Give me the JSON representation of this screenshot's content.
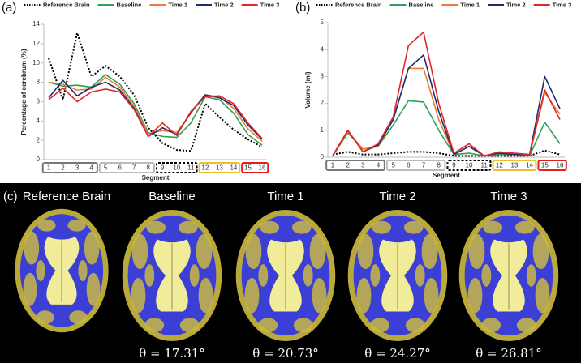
{
  "chart_data": [
    {
      "type": "line",
      "panel_label": "(a)",
      "y_label": "Percentage of cerebrum (%)",
      "x_label": "Segment",
      "categories": [
        "1",
        "2",
        "3",
        "4",
        "5",
        "6",
        "7",
        "8",
        "9",
        "10",
        "11",
        "12",
        "13",
        "14",
        "15",
        "16"
      ],
      "ylim": [
        0,
        14
      ],
      "yticks": [
        0,
        2,
        4,
        6,
        8,
        10,
        12,
        14
      ],
      "series": [
        {
          "name": "Reference Brain",
          "color": "#000000",
          "style": "dotted",
          "values": [
            10.5,
            6.2,
            13.1,
            8.6,
            9.7,
            8.6,
            6.7,
            3.3,
            1.7,
            1.0,
            0.9,
            5.8,
            4.4,
            3.1,
            2.1,
            1.3
          ]
        },
        {
          "name": "Baseline",
          "color": "#2ca05a",
          "style": "solid",
          "values": [
            8.0,
            7.6,
            7.7,
            7.5,
            8.8,
            7.8,
            5.8,
            2.8,
            2.4,
            2.3,
            3.8,
            6.5,
            6.2,
            4.8,
            2.6,
            1.5
          ]
        },
        {
          "name": "Time 1",
          "color": "#ed7d31",
          "style": "solid",
          "values": [
            8.0,
            7.8,
            7.2,
            7.3,
            8.5,
            7.5,
            5.5,
            2.7,
            3.0,
            2.8,
            4.8,
            6.7,
            6.5,
            5.3,
            3.2,
            1.9
          ]
        },
        {
          "name": "Time 2",
          "color": "#1f2d6e",
          "style": "solid",
          "values": [
            6.4,
            8.2,
            6.6,
            7.5,
            8.0,
            7.2,
            5.3,
            2.4,
            3.3,
            2.6,
            4.9,
            6.7,
            6.4,
            5.6,
            3.6,
            2.1
          ]
        },
        {
          "name": "Time 3",
          "color": "#e0262b",
          "style": "solid",
          "values": [
            6.2,
            7.4,
            6.0,
            7.0,
            7.3,
            7.0,
            5.2,
            2.4,
            3.8,
            2.5,
            5.0,
            6.5,
            6.6,
            5.8,
            3.8,
            2.2
          ]
        }
      ]
    },
    {
      "type": "line",
      "panel_label": "(b)",
      "y_label": "Volume (ml)",
      "x_label": "Segment",
      "categories": [
        "1",
        "2",
        "3",
        "4",
        "5",
        "6",
        "7",
        "8",
        "9",
        "10",
        "11",
        "12",
        "13",
        "14",
        "15",
        "16"
      ],
      "ylim": [
        0,
        5
      ],
      "yticks": [
        0,
        1,
        2,
        3,
        4,
        5
      ],
      "series": [
        {
          "name": "Reference Brain",
          "color": "#000000",
          "style": "dotted",
          "values": [
            0.1,
            0.2,
            0.1,
            0.1,
            0.15,
            0.2,
            0.2,
            0.15,
            0.05,
            0.05,
            0.05,
            0.05,
            0.05,
            0.05,
            0.25,
            0.1
          ]
        },
        {
          "name": "Baseline",
          "color": "#2ca05a",
          "style": "solid",
          "values": [
            0.05,
            0.9,
            0.3,
            0.4,
            1.2,
            2.1,
            2.05,
            1.0,
            0.1,
            0.15,
            0.05,
            0.1,
            0.1,
            0.05,
            1.3,
            0.5
          ]
        },
        {
          "name": "Time 1",
          "color": "#ed7d31",
          "style": "solid",
          "values": [
            0.05,
            0.95,
            0.3,
            0.4,
            1.4,
            3.3,
            3.3,
            1.4,
            0.1,
            0.4,
            0.05,
            0.15,
            0.1,
            0.1,
            2.4,
            1.6
          ]
        },
        {
          "name": "Time 2",
          "color": "#1f2d6e",
          "style": "solid",
          "values": [
            0.05,
            1.0,
            0.2,
            0.45,
            1.4,
            3.3,
            3.8,
            1.7,
            0.1,
            0.4,
            0.05,
            0.15,
            0.1,
            0.1,
            3.0,
            1.8
          ]
        },
        {
          "name": "Time 3",
          "color": "#e0262b",
          "style": "solid",
          "values": [
            0.05,
            1.0,
            0.2,
            0.5,
            1.5,
            4.15,
            4.65,
            2.0,
            0.15,
            0.5,
            0.05,
            0.2,
            0.15,
            0.1,
            2.5,
            1.4
          ]
        }
      ]
    }
  ],
  "panel_c": {
    "label": "(c)",
    "images": [
      {
        "title": "Reference Brain"
      },
      {
        "title": "Baseline",
        "caption": "θ = 17.31°"
      },
      {
        "title": "Time 1",
        "caption": "θ = 20.73°"
      },
      {
        "title": "Time 2",
        "caption": "θ = 24.27°"
      },
      {
        "title": "Time 3",
        "caption": "θ = 26.81°"
      }
    ]
  }
}
